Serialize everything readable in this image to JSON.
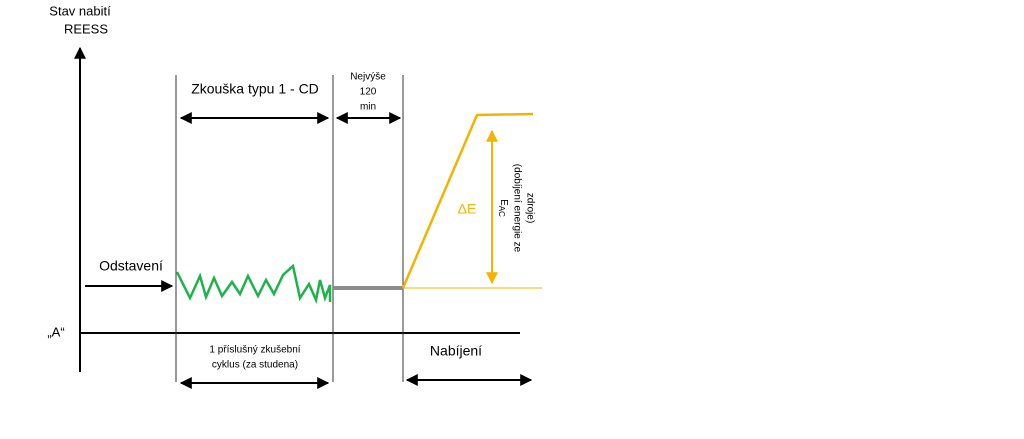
{
  "y_axis_label": [
    "Stav nabití",
    "REESS"
  ],
  "x_axis_label": "„A“",
  "phases": {
    "soak": "Odstavení",
    "test": "Zkouška typu 1 - CD",
    "pause": [
      "Nejvýše",
      "120",
      "min"
    ],
    "cycle": [
      "1 příslušný zkušební",
      "cyklus (za studena)"
    ],
    "charging": "Nabíjení"
  },
  "delta_label": "ΔE",
  "energy_label": {
    "symbol": "E",
    "subscript": "AC",
    "lines": [
      "(dobíjení energie ze",
      "zdroje)"
    ]
  }
}
